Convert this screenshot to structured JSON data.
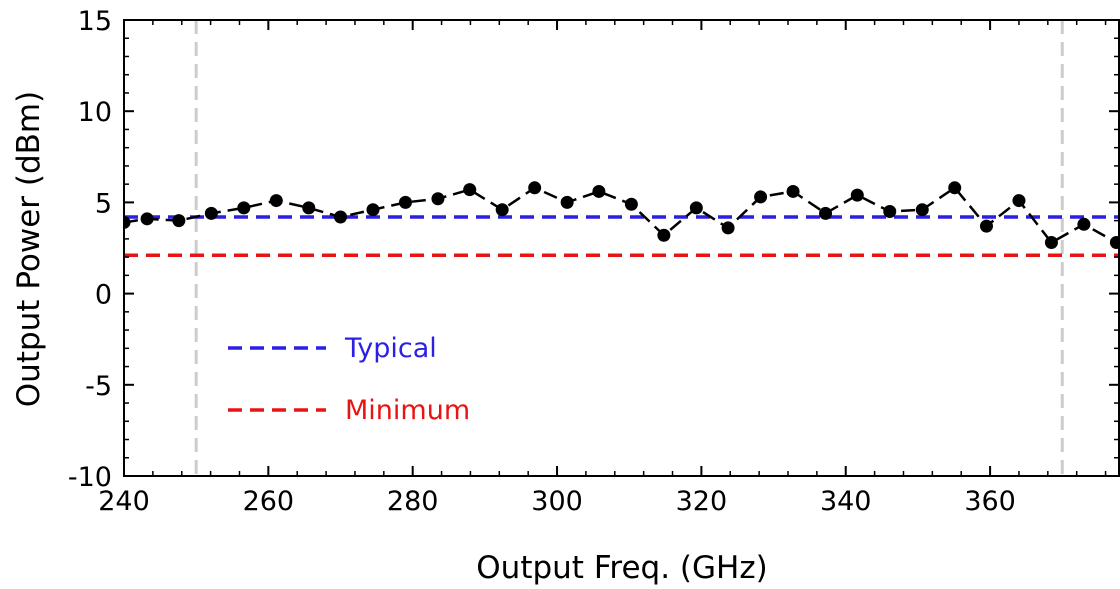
{
  "chart_data": {
    "type": "line",
    "xlabel": "Output Freq. (GHz)",
    "ylabel": "Output Power (dBm)",
    "xlim": [
      240,
      378
    ],
    "ylim": [
      -10,
      15
    ],
    "xticks": [
      240,
      260,
      280,
      300,
      320,
      340,
      360
    ],
    "yticks": [
      -10,
      -5,
      0,
      5,
      10,
      15
    ],
    "grid": false,
    "legend_position": "lower-left",
    "series": [
      {
        "style": "black dashed line with circle markers",
        "color": "#000000",
        "x": [
          240,
          243.2,
          247.6,
          252.1,
          256.6,
          261.1,
          265.6,
          270.0,
          274.5,
          279.0,
          283.5,
          287.9,
          292.4,
          296.9,
          301.4,
          305.8,
          310.3,
          314.8,
          319.3,
          323.7,
          328.2,
          332.7,
          337.2,
          341.6,
          346.1,
          350.6,
          355.1,
          359.5,
          364.0,
          368.5,
          373.0,
          377.5
        ],
        "y": [
          3.9,
          4.1,
          4.0,
          4.4,
          4.7,
          5.1,
          4.7,
          4.2,
          4.6,
          5.0,
          5.2,
          5.7,
          4.6,
          5.8,
          5.0,
          5.6,
          4.9,
          3.2,
          4.7,
          3.6,
          5.3,
          5.6,
          4.4,
          5.4,
          4.5,
          4.6,
          5.8,
          3.7,
          5.1,
          2.8,
          3.8,
          2.8
        ]
      }
    ],
    "reference_lines": [
      {
        "name": "Typical",
        "y": 4.2,
        "color": "#2b1fe6",
        "style": "dashed"
      },
      {
        "name": "Minimum",
        "y": 2.1,
        "color": "#e81414",
        "style": "dashed"
      }
    ],
    "vertical_markers": [
      {
        "x": 250,
        "color": "#cccccc",
        "style": "dashed"
      },
      {
        "x": 370,
        "color": "#cccccc",
        "style": "dashed"
      }
    ]
  }
}
